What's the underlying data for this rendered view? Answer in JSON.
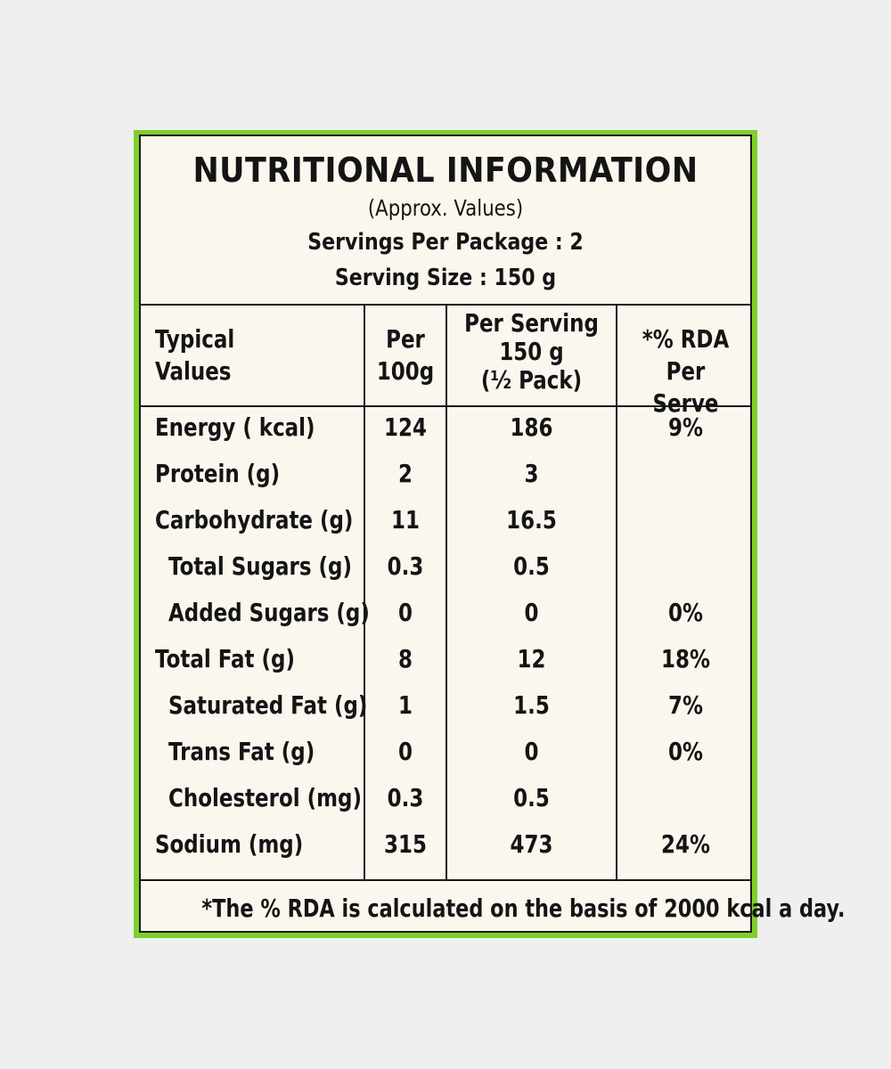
{
  "label": {
    "title": "NUTRITIONAL INFORMATION",
    "subtitle": "(Approx. Values)",
    "servings_per_package": "Servings Per Package : 2",
    "serving_size": "Serving Size : 150 g"
  },
  "table": {
    "headers": {
      "col1": [
        "Typical",
        "Values"
      ],
      "col2": [
        "Per",
        "100g"
      ],
      "col3": [
        "Per Serving",
        "150 g",
        "(½ Pack)"
      ],
      "col4": [
        "*% RDA",
        "Per Serve"
      ]
    },
    "rows": [
      {
        "nutrient": "Energy ( kcal)",
        "per100": "124",
        "perServing": "186",
        "rda": "9%"
      },
      {
        "nutrient": "Protein (g)",
        "per100": "2",
        "perServing": "3",
        "rda": ""
      },
      {
        "nutrient": "Carbohydrate (g)",
        "per100": "11",
        "perServing": "16.5",
        "rda": ""
      },
      {
        "nutrient": "Total Sugars (g)",
        "per100": "0.3",
        "perServing": "0.5",
        "rda": ""
      },
      {
        "nutrient": "Added Sugars (g)",
        "per100": "0",
        "perServing": "0",
        "rda": "0%"
      },
      {
        "nutrient": "Total Fat (g)",
        "per100": "8",
        "perServing": "12",
        "rda": "18%"
      },
      {
        "nutrient": "Saturated Fat (g)",
        "per100": "1",
        "perServing": "1.5",
        "rda": "7%"
      },
      {
        "nutrient": "Trans Fat (g)",
        "per100": "0",
        "perServing": "0",
        "rda": "0%"
      },
      {
        "nutrient": "Cholesterol (mg)",
        "per100": "0.3",
        "perServing": "0.5",
        "rda": ""
      },
      {
        "nutrient": "Sodium (mg)",
        "per100": "315",
        "perServing": "473",
        "rda": "24%"
      }
    ]
  },
  "footer": "*The % RDA is calculated on the basis of 2000 kcal a day.",
  "colors": {
    "border_accent": "#7fcf2a",
    "label_bg": "#fbf7ef",
    "text": "#141414"
  }
}
